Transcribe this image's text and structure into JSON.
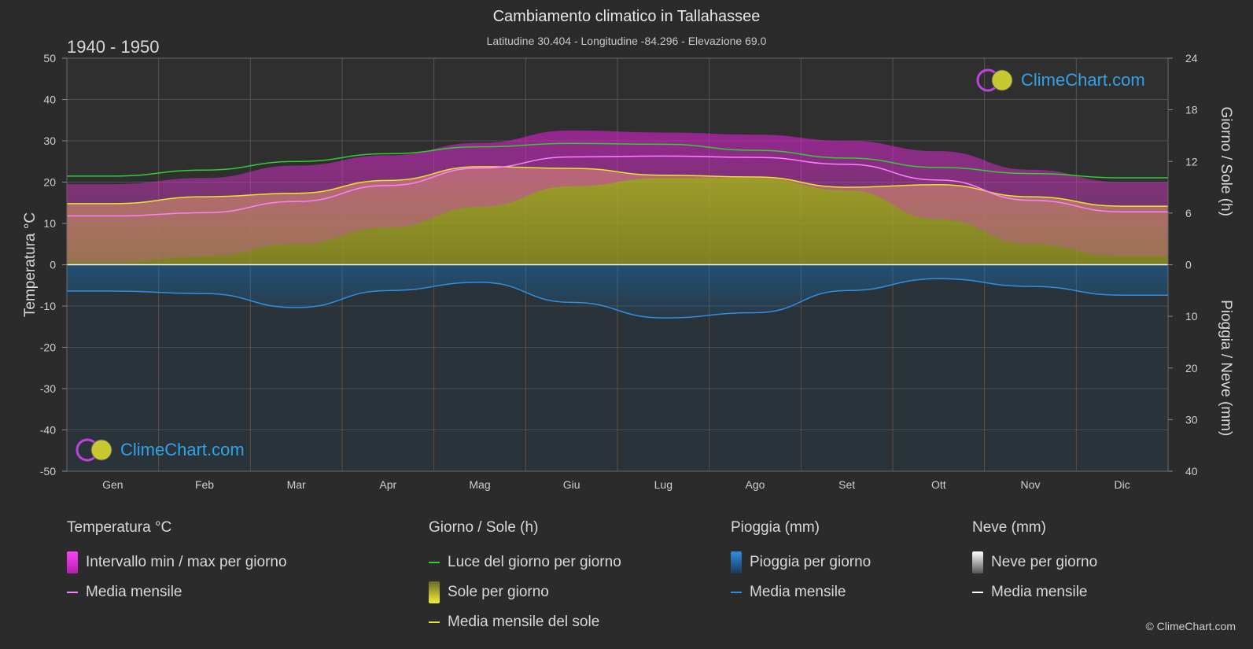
{
  "header": {
    "title": "Cambiamento climatico in Tallahassee",
    "subtitle": "Latitudine 30.404 - Longitudine -84.296 - Elevazione 69.0",
    "period": "1940 - 1950"
  },
  "logo": {
    "text": "ClimeChart.com"
  },
  "copyright": "© ClimeChart.com",
  "colors": {
    "background": "#2b2b2b",
    "temp_range": "#d020c8",
    "temp_mean": "#ff80ff",
    "daylight": "#33cc33",
    "sunshine_bar": "#b4b42a",
    "sunshine_mean": "#e6e62e",
    "rain_bar": "#1a6fb0",
    "rain_mean": "#2f8fe0",
    "snow_mean": "#ffffff"
  },
  "chart_data": {
    "type": "line",
    "months": [
      "Gen",
      "Feb",
      "Mar",
      "Apr",
      "Mag",
      "Giu",
      "Lug",
      "Ago",
      "Set",
      "Ott",
      "Nov",
      "Dic"
    ],
    "axes": {
      "left_label": "Temperatura °C",
      "left_range": [
        -50,
        50
      ],
      "left_ticks": [
        "50",
        "40",
        "30",
        "20",
        "10",
        "0",
        "-10",
        "-20",
        "-30",
        "-40",
        "-50"
      ],
      "right_top_label": "Giorno / Sole (h)",
      "right_top_range": [
        0,
        24
      ],
      "right_top_ticks": [
        "24",
        "18",
        "12",
        "6",
        "0"
      ],
      "right_bottom_label": "Pioggia / Neve (mm)",
      "right_bottom_range": [
        0,
        40
      ],
      "right_bottom_ticks": [
        "10",
        "20",
        "30",
        "40"
      ],
      "grid": true
    },
    "series": [
      {
        "name": "Media mensile",
        "group": "Temperatura °C",
        "unit": "°C",
        "values": [
          11.8,
          12.6,
          15.3,
          19.2,
          23.4,
          26.1,
          26.3,
          26.0,
          24.3,
          20.5,
          15.6,
          12.8
        ]
      },
      {
        "name": "Intervallo min / max per giorno (min)",
        "group": "Temperatura °C",
        "unit": "°C",
        "values": [
          0.5,
          2.0,
          5.0,
          9.0,
          14.0,
          19.0,
          21.0,
          21.0,
          18.0,
          11.0,
          5.0,
          2.0
        ]
      },
      {
        "name": "Intervallo min / max per giorno (max)",
        "group": "Temperatura °C",
        "unit": "°C",
        "values": [
          19.5,
          21.0,
          24.0,
          26.5,
          29.5,
          32.5,
          32.0,
          31.5,
          30.0,
          27.5,
          23.0,
          20.0
        ]
      },
      {
        "name": "Luce del giorno per giorno",
        "group": "Giorno / Sole (h)",
        "unit": "h",
        "values": [
          10.3,
          11.0,
          12.0,
          12.9,
          13.7,
          14.1,
          14.0,
          13.3,
          12.4,
          11.3,
          10.6,
          10.1
        ]
      },
      {
        "name": "Media mensile del sole",
        "group": "Giorno / Sole (h)",
        "unit": "h",
        "values": [
          7.1,
          7.9,
          8.3,
          9.8,
          11.4,
          11.2,
          10.4,
          10.2,
          9.0,
          9.3,
          7.9,
          6.8
        ]
      },
      {
        "name": "Media mensile",
        "group": "Pioggia (mm)",
        "unit": "mm",
        "values": [
          5.1,
          5.6,
          8.3,
          5.0,
          3.4,
          7.3,
          10.3,
          9.3,
          5.0,
          2.7,
          4.2,
          5.9
        ]
      },
      {
        "name": "Media mensile",
        "group": "Neve (mm)",
        "unit": "mm",
        "values": [
          0,
          0,
          0,
          0,
          0,
          0,
          0,
          0,
          0,
          0,
          0,
          0
        ]
      }
    ]
  },
  "legend": {
    "temperature": {
      "title": "Temperatura °C",
      "items": [
        "Intervallo min / max per giorno",
        "Media mensile"
      ]
    },
    "sun": {
      "title": "Giorno / Sole (h)",
      "items": [
        "Luce del giorno per giorno",
        "Sole per giorno",
        "Media mensile del sole"
      ]
    },
    "rain": {
      "title": "Pioggia (mm)",
      "items": [
        "Pioggia per giorno",
        "Media mensile"
      ]
    },
    "snow": {
      "title": "Neve (mm)",
      "items": [
        "Neve per giorno",
        "Media mensile"
      ]
    }
  }
}
